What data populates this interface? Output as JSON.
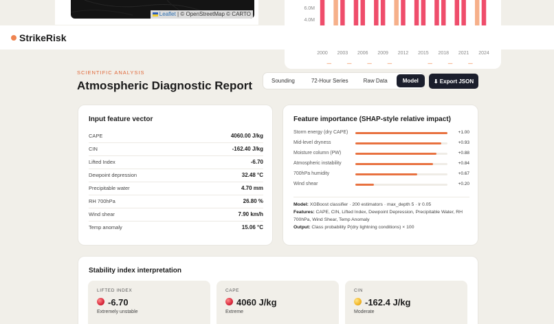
{
  "map": {
    "attribution_leaflet": "Leaflet",
    "attribution_rest": " | © OpenStreetMap © CARTO"
  },
  "trend_chart": {
    "y_ticks": [
      "6.0M",
      "4.0M"
    ],
    "x_ticks": [
      "2000",
      "2003",
      "2006",
      "2009",
      "2012",
      "2015",
      "2018",
      "2021",
      "2024"
    ],
    "colors": {
      "high": "#ef4d6b",
      "low": "#f6b08a"
    }
  },
  "chart_data": {
    "type": "bar",
    "x": [
      2000,
      2001,
      2002,
      2003,
      2004,
      2005,
      2006,
      2007,
      2008,
      2009,
      2010,
      2011,
      2012,
      2013,
      2014,
      2015,
      2016,
      2017,
      2018,
      2019,
      2020,
      2021,
      2022,
      2023,
      2024
    ],
    "values": [
      9.0,
      0.3,
      6.9,
      9.0,
      0.3,
      9.0,
      9.0,
      0.3,
      9.0,
      9.0,
      0.3,
      7.2,
      9.0,
      3.2,
      9.0,
      9.0,
      0.3,
      9.0,
      9.0,
      0.3,
      9.0,
      9.0,
      0.3,
      7.8,
      9.0
    ],
    "highlight": [
      true,
      false,
      false,
      true,
      false,
      true,
      true,
      false,
      true,
      true,
      false,
      false,
      true,
      false,
      true,
      true,
      false,
      true,
      true,
      false,
      true,
      true,
      false,
      false,
      true
    ],
    "xlabel": "",
    "ylabel": "",
    "ylim": [
      3.5,
      7.0
    ]
  },
  "nav": {
    "brand": "StrikeRisk"
  },
  "header": {
    "kicker": "SCIENTIFIC ANALYSIS",
    "title": "Atmospheric Diagnostic Report",
    "tabs": [
      "Sounding",
      "72-Hour Series",
      "Raw Data",
      "Model"
    ],
    "active_tab": 3,
    "export_label": "⬇ Export JSON"
  },
  "features": {
    "title": "Input feature vector",
    "rows": [
      {
        "k": "CAPE",
        "v": "4060.00 J/kg"
      },
      {
        "k": "CIN",
        "v": "-162.40 J/kg"
      },
      {
        "k": "Lifted Index",
        "v": "-6.70"
      },
      {
        "k": "Dewpoint depression",
        "v": "32.48 °C"
      },
      {
        "k": "Precipitable water",
        "v": "4.70 mm"
      },
      {
        "k": "RH 700hPa",
        "v": "26.80 %"
      },
      {
        "k": "Wind shear",
        "v": "7.90 km/h"
      },
      {
        "k": "Temp anomaly",
        "v": "15.06 °C"
      }
    ]
  },
  "shap": {
    "title": "Feature importance (SHAP-style relative impact)",
    "rows": [
      {
        "k": "Storm energy (dry CAPE)",
        "v": "+1.00",
        "f": 1.0
      },
      {
        "k": "Mid-level dryness",
        "v": "+0.93",
        "f": 0.93
      },
      {
        "k": "Moisture column (PW)",
        "v": "+0.88",
        "f": 0.88
      },
      {
        "k": "Atmospheric instability",
        "v": "+0.84",
        "f": 0.84
      },
      {
        "k": "700hPa humidity",
        "v": "+0.67",
        "f": 0.67
      },
      {
        "k": "Wind shear",
        "v": "+0.20",
        "f": 0.2
      }
    ],
    "model_label": "Model:",
    "model_text": " XGBoost classifier · 200 estimators · max_depth 5 · lr 0.05",
    "features_label": "Features:",
    "features_text": " CAPE, CIN, Lifted Index, Dewpoint Depression, Precipitable Water, RH 700hPa, Wind Shear, Temp Anomaly",
    "output_label": "Output:",
    "output_text": " Class probability P(dry lightning conditions) × 100"
  },
  "stability": {
    "title": "Stability index interpretation",
    "items": [
      {
        "label": "LIFTED INDEX",
        "value": "-6.70",
        "desc": "Extremely unstable",
        "color": "red"
      },
      {
        "label": "CAPE",
        "value": "4060 J/kg",
        "desc": "Extreme",
        "color": "red"
      },
      {
        "label": "CIN",
        "value": "-162.4 J/kg",
        "desc": "Moderate",
        "color": "yellow"
      }
    ]
  }
}
